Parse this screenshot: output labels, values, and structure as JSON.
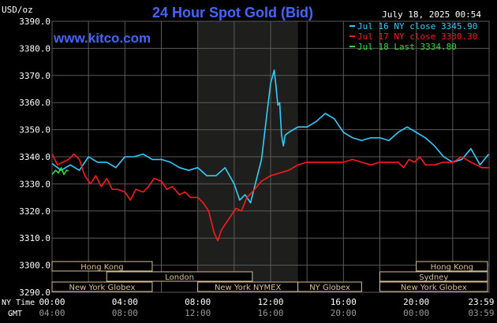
{
  "header": {
    "title": "24 Hour Spot Gold (Bid)",
    "date": "July 18, 2025 00:54",
    "website": "www.kitco.com",
    "unit": "USD/oz"
  },
  "legend": [
    {
      "text": "Jul 16 NY close 3345.90",
      "color": "#33ccff"
    },
    {
      "text": "Jul 17 NY close 3330.30",
      "color": "#ff1a1a"
    },
    {
      "text": "Jul 18 Last 3334.80",
      "color": "#33dd33"
    }
  ],
  "axis_labels": {
    "ny_time": "NY Time",
    "gmt": "GMT"
  },
  "sessions": [
    {
      "label": "Hong Kong",
      "start": -1.0,
      "end": 5.5,
      "row": 0
    },
    {
      "label": "London",
      "start": 3.0,
      "end": 11.0,
      "row": 1
    },
    {
      "label": "New York Globex",
      "start": -1.0,
      "end": 5.5,
      "row": 2
    },
    {
      "label": "New York NYMEX",
      "start": 8.0,
      "end": 13.5,
      "row": 2
    },
    {
      "label": "NY Globex",
      "start": 13.5,
      "end": 17.0,
      "row": 2
    },
    {
      "label": "Hong Kong",
      "start": 20.0,
      "end": 24.0,
      "row": 0
    },
    {
      "label": "Sydney",
      "start": 18.0,
      "end": 24.0,
      "row": 1
    },
    {
      "label": "New York Globex",
      "start": 18.0,
      "end": 24.0,
      "row": 2
    }
  ],
  "chart_data": {
    "type": "line",
    "title": "24 Hour Spot Gold (Bid)",
    "ylabel": "USD/oz",
    "ylim": [
      3290.0,
      3390.0
    ],
    "xlim": [
      0,
      24
    ],
    "yticks": [
      "3290.0",
      "3300.0",
      "3310.0",
      "3320.0",
      "3330.0",
      "3340.0",
      "3350.0",
      "3360.0",
      "3370.0",
      "3380.0",
      "3390.0"
    ],
    "xticks_ny": [
      "00:00",
      "04:00",
      "08:00",
      "12:00",
      "16:00",
      "20:00",
      "23:59"
    ],
    "xticks_gmt": [
      "04:00",
      "08:00",
      "12:00",
      "16:00",
      "20:00",
      "00:00",
      "03:59"
    ],
    "grid": true,
    "legend_position": "top-right",
    "highlight_range": [
      8.0,
      13.5
    ],
    "series": [
      {
        "name": "Jul 16 NY close 3345.90",
        "color": "#33ccff",
        "points": [
          [
            0,
            3337.5
          ],
          [
            0.5,
            3335
          ],
          [
            1,
            3337
          ],
          [
            1.5,
            3335
          ],
          [
            2,
            3340
          ],
          [
            2.5,
            3338
          ],
          [
            3,
            3338
          ],
          [
            3.5,
            3336
          ],
          [
            4,
            3340
          ],
          [
            4.5,
            3340
          ],
          [
            5,
            3341
          ],
          [
            5.5,
            3339
          ],
          [
            6,
            3339
          ],
          [
            6.5,
            3338
          ],
          [
            7,
            3336
          ],
          [
            7.5,
            3335
          ],
          [
            8,
            3336
          ],
          [
            8.5,
            3333
          ],
          [
            9,
            3333
          ],
          [
            9.5,
            3336
          ],
          [
            10,
            3330
          ],
          [
            10.3,
            3324
          ],
          [
            10.6,
            3326
          ],
          [
            10.9,
            3323
          ],
          [
            11.2,
            3331
          ],
          [
            11.5,
            3339
          ],
          [
            11.8,
            3356
          ],
          [
            12,
            3367
          ],
          [
            12.2,
            3372
          ],
          [
            12.3,
            3366
          ],
          [
            12.4,
            3359
          ],
          [
            12.5,
            3360
          ],
          [
            12.6,
            3348
          ],
          [
            12.7,
            3344
          ],
          [
            12.8,
            3348
          ],
          [
            13,
            3349
          ],
          [
            13.5,
            3351
          ],
          [
            14,
            3351
          ],
          [
            14.5,
            3353
          ],
          [
            15,
            3356
          ],
          [
            15.5,
            3354
          ],
          [
            16,
            3349
          ],
          [
            16.5,
            3347
          ],
          [
            17,
            3346
          ],
          [
            17.5,
            3347
          ],
          [
            18,
            3347
          ],
          [
            18.5,
            3346
          ],
          [
            19,
            3349
          ],
          [
            19.5,
            3351
          ],
          [
            20,
            3349
          ],
          [
            20.5,
            3347
          ],
          [
            21,
            3344
          ],
          [
            21.5,
            3340
          ],
          [
            22,
            3338
          ],
          [
            22.5,
            3339
          ],
          [
            23,
            3343
          ],
          [
            23.5,
            3337
          ],
          [
            23.98,
            3341
          ]
        ]
      },
      {
        "name": "Jul 17 NY close 3330.30",
        "color": "#ff1a1a",
        "points": [
          [
            0,
            3341
          ],
          [
            0.3,
            3337
          ],
          [
            0.6,
            3338
          ],
          [
            0.9,
            3339
          ],
          [
            1.2,
            3341
          ],
          [
            1.5,
            3339
          ],
          [
            1.8,
            3333
          ],
          [
            2.1,
            3330
          ],
          [
            2.4,
            3333
          ],
          [
            2.7,
            3329
          ],
          [
            3,
            3332
          ],
          [
            3.3,
            3328
          ],
          [
            3.6,
            3328
          ],
          [
            4,
            3327
          ],
          [
            4.3,
            3324
          ],
          [
            4.6,
            3328
          ],
          [
            5,
            3327
          ],
          [
            5.3,
            3329
          ],
          [
            5.6,
            3332
          ],
          [
            6,
            3331
          ],
          [
            6.3,
            3328
          ],
          [
            6.6,
            3329
          ],
          [
            7,
            3326
          ],
          [
            7.3,
            3327
          ],
          [
            7.6,
            3325
          ],
          [
            8,
            3325
          ],
          [
            8.3,
            3323
          ],
          [
            8.6,
            3320
          ],
          [
            8.9,
            3312
          ],
          [
            9.1,
            3309
          ],
          [
            9.3,
            3313
          ],
          [
            9.5,
            3315
          ],
          [
            9.8,
            3318
          ],
          [
            10.1,
            3321
          ],
          [
            10.4,
            3320
          ],
          [
            10.7,
            3325
          ],
          [
            11,
            3327
          ],
          [
            11.5,
            3331
          ],
          [
            12,
            3333
          ],
          [
            12.5,
            3334
          ],
          [
            13,
            3335
          ],
          [
            13.5,
            3337
          ],
          [
            14,
            3338
          ],
          [
            14.5,
            3338
          ],
          [
            15,
            3338
          ],
          [
            15.5,
            3338
          ],
          [
            16,
            3338
          ],
          [
            16.5,
            3339
          ],
          [
            17,
            3338
          ],
          [
            17.5,
            3337
          ],
          [
            18,
            3338
          ],
          [
            18.5,
            3338
          ],
          [
            19,
            3338
          ],
          [
            19.3,
            3336
          ],
          [
            19.6,
            3339
          ],
          [
            19.9,
            3338
          ],
          [
            20.2,
            3340
          ],
          [
            20.5,
            3337
          ],
          [
            21,
            3337
          ],
          [
            21.5,
            3338
          ],
          [
            22,
            3338
          ],
          [
            22.5,
            3340
          ],
          [
            23,
            3338
          ],
          [
            23.3,
            3337
          ],
          [
            23.6,
            3336
          ],
          [
            23.98,
            3336
          ]
        ]
      },
      {
        "name": "Jul 18 Last 3334.80",
        "color": "#33dd33",
        "points": [
          [
            0,
            3333.5
          ],
          [
            0.2,
            3335
          ],
          [
            0.35,
            3334
          ],
          [
            0.5,
            3336
          ],
          [
            0.65,
            3333.5
          ],
          [
            0.8,
            3335
          ],
          [
            0.9,
            3334.8
          ]
        ]
      }
    ]
  }
}
